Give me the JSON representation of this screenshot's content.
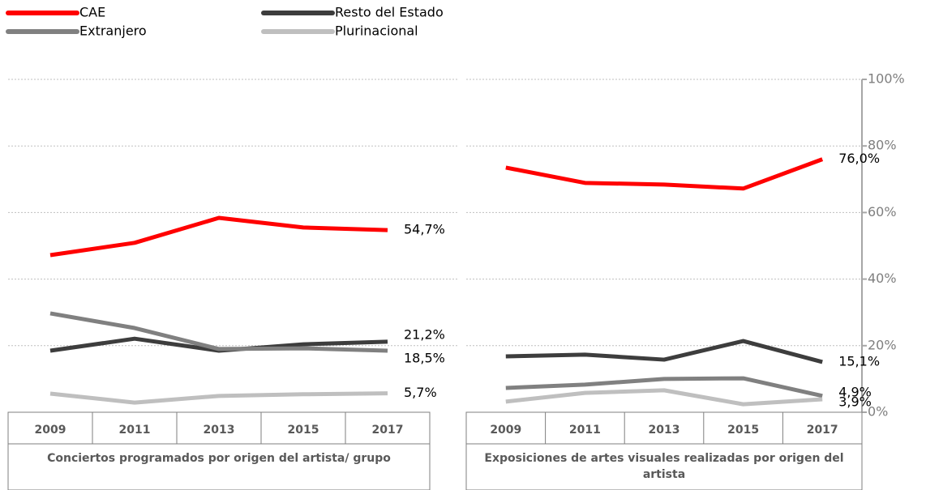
{
  "chart_data": [
    {
      "type": "line",
      "title": "Conciertos programados por origen del artista/ grupo",
      "categories": [
        "2009",
        "2011",
        "2013",
        "2015",
        "2017"
      ],
      "ylim": [
        0,
        100
      ],
      "grid": true,
      "series": [
        {
          "name": "CAE",
          "color": "#ff0000",
          "values": [
            47.2,
            50.9,
            58.4,
            55.5,
            54.7
          ],
          "value_labels": [
            null,
            null,
            null,
            null,
            "54,7%"
          ]
        },
        {
          "name": "Resto del Estado",
          "color": "#3d3d3d",
          "values": [
            18.5,
            22.1,
            18.5,
            20.4,
            21.2
          ],
          "value_labels": [
            null,
            null,
            null,
            null,
            "21,2%"
          ]
        },
        {
          "name": "Extranjero",
          "color": "#808080",
          "values": [
            29.7,
            25.3,
            19.0,
            19.2,
            18.5
          ],
          "value_labels": [
            null,
            null,
            null,
            null,
            "18,5%"
          ]
        },
        {
          "name": "Plurinacional",
          "color": "#bfbfbf",
          "values": [
            5.6,
            2.9,
            4.9,
            5.4,
            5.7
          ],
          "value_labels": [
            null,
            null,
            null,
            null,
            "5,7%"
          ]
        }
      ]
    },
    {
      "type": "line",
      "title": "Exposiciones de artes visuales realizadas por origen del artista",
      "categories": [
        "2009",
        "2011",
        "2013",
        "2015",
        "2017"
      ],
      "ylim": [
        0,
        100
      ],
      "grid": true,
      "yticks": [
        {
          "value": 0,
          "label": "0%"
        },
        {
          "value": 20,
          "label": "20%"
        },
        {
          "value": 40,
          "label": "40%"
        },
        {
          "value": 60,
          "label": "60%"
        },
        {
          "value": 80,
          "label": "80%"
        },
        {
          "value": 100,
          "label": "100%"
        }
      ],
      "series": [
        {
          "name": "CAE",
          "color": "#ff0000",
          "values": [
            73.5,
            68.9,
            68.4,
            67.2,
            76.0
          ],
          "value_labels": [
            null,
            null,
            null,
            null,
            "76,0%"
          ]
        },
        {
          "name": "Resto del Estado",
          "color": "#3d3d3d",
          "values": [
            16.8,
            17.3,
            15.8,
            21.4,
            15.1
          ],
          "value_labels": [
            null,
            null,
            null,
            null,
            "15,1%"
          ]
        },
        {
          "name": "Extranjero",
          "color": "#808080",
          "values": [
            7.3,
            8.3,
            10.0,
            10.2,
            4.9
          ],
          "value_labels": [
            null,
            null,
            null,
            null,
            "4,9%"
          ]
        },
        {
          "name": "Plurinacional",
          "color": "#bfbfbf",
          "values": [
            3.2,
            5.8,
            6.6,
            2.4,
            3.9
          ],
          "value_labels": [
            null,
            null,
            null,
            null,
            "3,9%"
          ]
        }
      ]
    }
  ]
}
